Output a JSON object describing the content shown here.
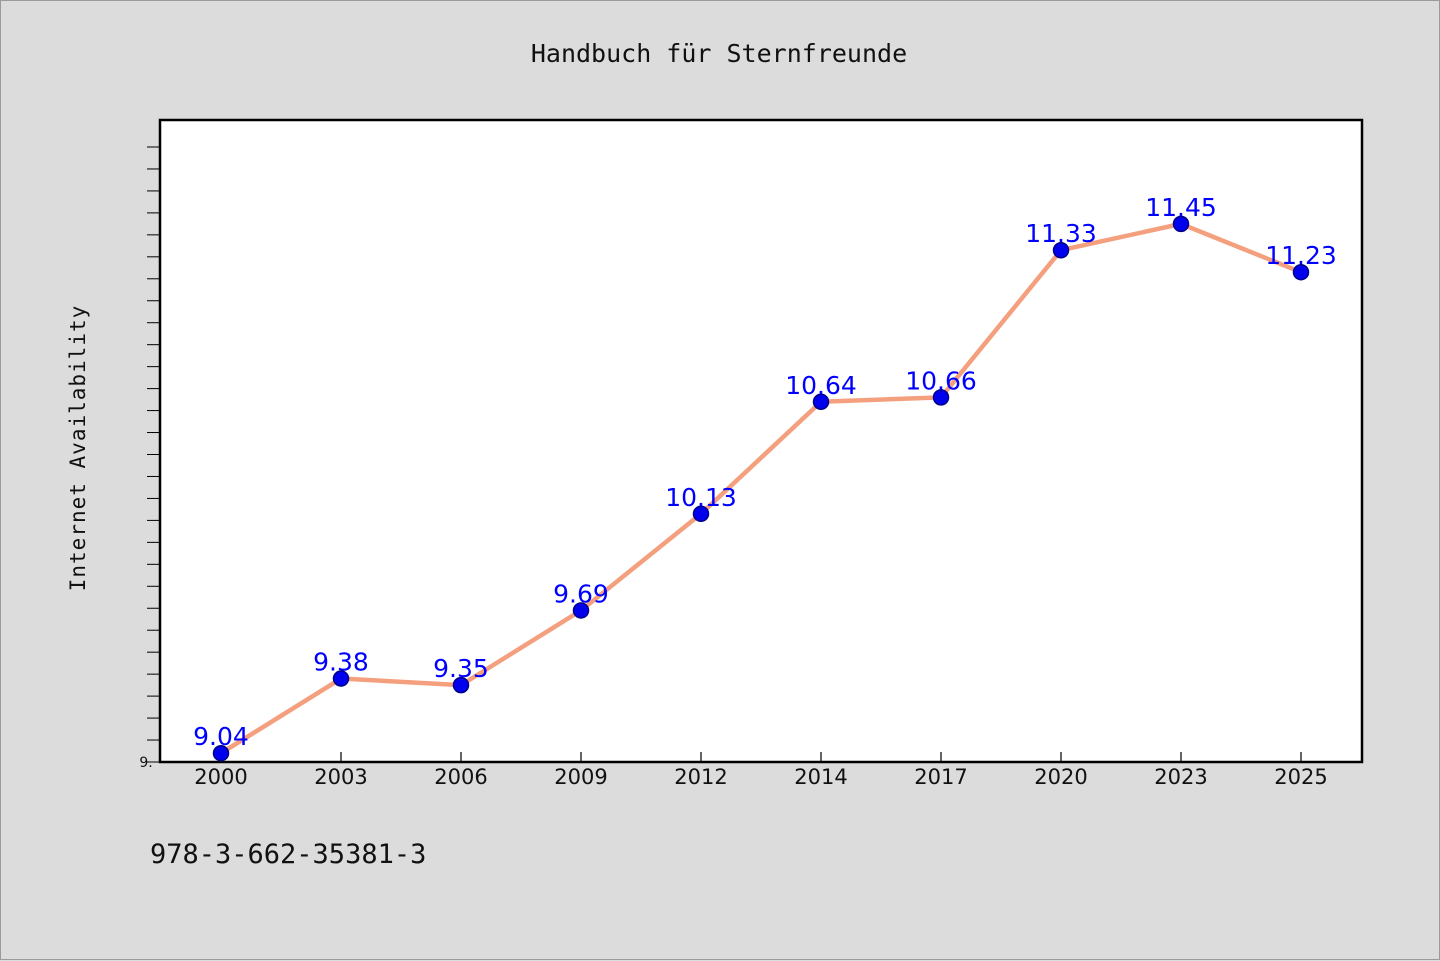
{
  "chart_data": {
    "type": "line",
    "title": "Handbuch für Sternfreunde",
    "xlabel": "",
    "ylabel": "Internet Availability",
    "categories": [
      "2000",
      "2003",
      "2006",
      "2009",
      "2012",
      "2014",
      "2017",
      "2020",
      "2023",
      "2025"
    ],
    "series": [
      {
        "values": [
          9.04,
          9.38,
          9.35,
          9.69,
          10.13,
          10.64,
          10.66,
          11.33,
          11.45,
          11.23
        ],
        "labels": [
          "9.04",
          "9.38",
          "9.35",
          "9.69",
          "10.13",
          "10.64",
          "10.66",
          "11.33",
          "11.45",
          "11.23"
        ]
      }
    ],
    "ylim": [
      9.0,
      11.8
    ],
    "y_tick_label": "9.",
    "grid": false,
    "legend": "none"
  },
  "footer": {
    "isbn": "978-3-662-35381-3"
  },
  "colors": {
    "background": "#dcdcdc",
    "plot_background": "#ffffff",
    "line": "#f4a07e",
    "marker": "#0000ee",
    "marker_edge": "#000088",
    "data_label": "#0000ff",
    "axis": "#000000"
  }
}
